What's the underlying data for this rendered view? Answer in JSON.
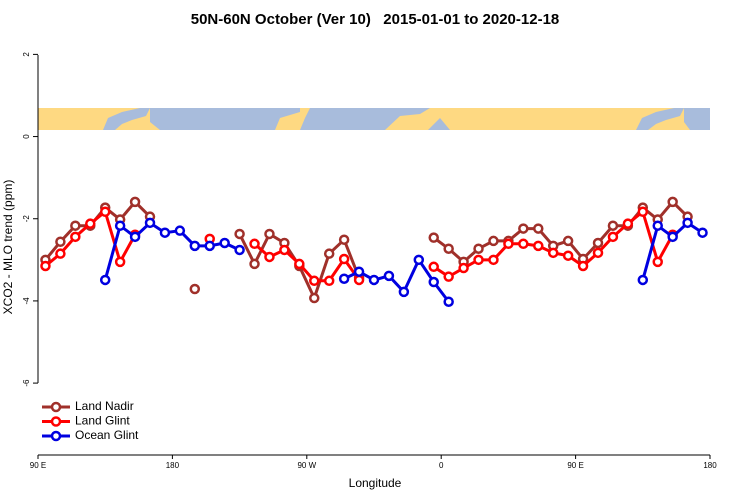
{
  "chart_data": {
    "type": "line",
    "title": "50N-60N October (Ver 10)   2015-01-01 to 2020-12-18",
    "x_label": "Longitude",
    "y_label": "XCO2 - MLO trend (ppm)",
    "x": [
      95,
      105,
      115,
      125,
      135,
      145,
      155,
      165,
      175,
      185,
      195,
      205,
      215,
      225,
      235,
      245,
      255,
      265,
      275,
      285,
      295,
      305,
      315,
      325,
      335,
      345,
      355,
      365,
      375,
      385,
      395,
      405,
      415,
      425,
      435,
      445,
      455,
      465,
      475,
      485,
      495,
      505,
      515,
      525,
      535
    ],
    "series": [
      {
        "name": "Land Nadir",
        "color": "#a0302a",
        "values": [
          -3.0,
          -2.56,
          -2.17,
          -2.17,
          -1.73,
          -2.02,
          -1.59,
          -1.95,
          null,
          null,
          -3.71,
          null,
          null,
          -2.37,
          -3.1,
          -2.37,
          -2.59,
          -3.15,
          -3.93,
          -2.85,
          -2.51,
          -3.44,
          null,
          null,
          null,
          null,
          -2.46,
          -2.73,
          -3.05,
          -2.73,
          -2.54,
          -2.54,
          -2.24,
          -2.24,
          -2.66,
          -2.54,
          -2.98,
          -2.59,
          -2.17,
          -2.17,
          -1.73,
          -2.02,
          -1.59,
          -1.95,
          null
        ]
      },
      {
        "name": "Land Glint",
        "color": "#ff0000",
        "values": [
          -3.15,
          -2.85,
          -2.44,
          -2.12,
          -1.83,
          -3.05,
          -2.39,
          null,
          null,
          null,
          null,
          -2.49,
          null,
          null,
          -2.61,
          -2.93,
          -2.76,
          -3.1,
          -3.51,
          -3.51,
          -2.98,
          -3.49,
          null,
          null,
          null,
          null,
          -3.17,
          -3.41,
          -3.2,
          -3.0,
          -3.0,
          -2.61,
          -2.61,
          -2.66,
          -2.83,
          -2.9,
          -3.15,
          -2.83,
          -2.44,
          -2.12,
          -1.83,
          -3.05,
          -2.39,
          null,
          null
        ]
      },
      {
        "name": "Ocean Glint",
        "color": "#0000e0",
        "values": [
          null,
          null,
          null,
          null,
          -3.49,
          -2.17,
          -2.44,
          -2.1,
          -2.34,
          -2.29,
          -2.66,
          -2.66,
          -2.59,
          -2.76,
          null,
          null,
          null,
          null,
          null,
          null,
          -3.46,
          -3.29,
          -3.49,
          -3.39,
          -3.78,
          -3.0,
          -3.54,
          -4.02,
          null,
          null,
          null,
          null,
          null,
          null,
          null,
          null,
          null,
          null,
          null,
          null,
          -3.49,
          -2.17,
          -2.44,
          -2.1,
          -2.34
        ]
      }
    ],
    "xlim": [
      90,
      540
    ],
    "xticks": [
      {
        "value": 90,
        "label": "90 E"
      },
      {
        "value": 180,
        "label": "180"
      },
      {
        "value": 270,
        "label": "90 W"
      },
      {
        "value": 360,
        "label": "0"
      },
      {
        "value": 450,
        "label": "90 E"
      },
      {
        "value": 540,
        "label": "180"
      }
    ],
    "ylim": [
      -7.75,
      2.35
    ],
    "yticks": [
      -6,
      -4,
      -2,
      0,
      2
    ],
    "legend": "bottom-left"
  }
}
